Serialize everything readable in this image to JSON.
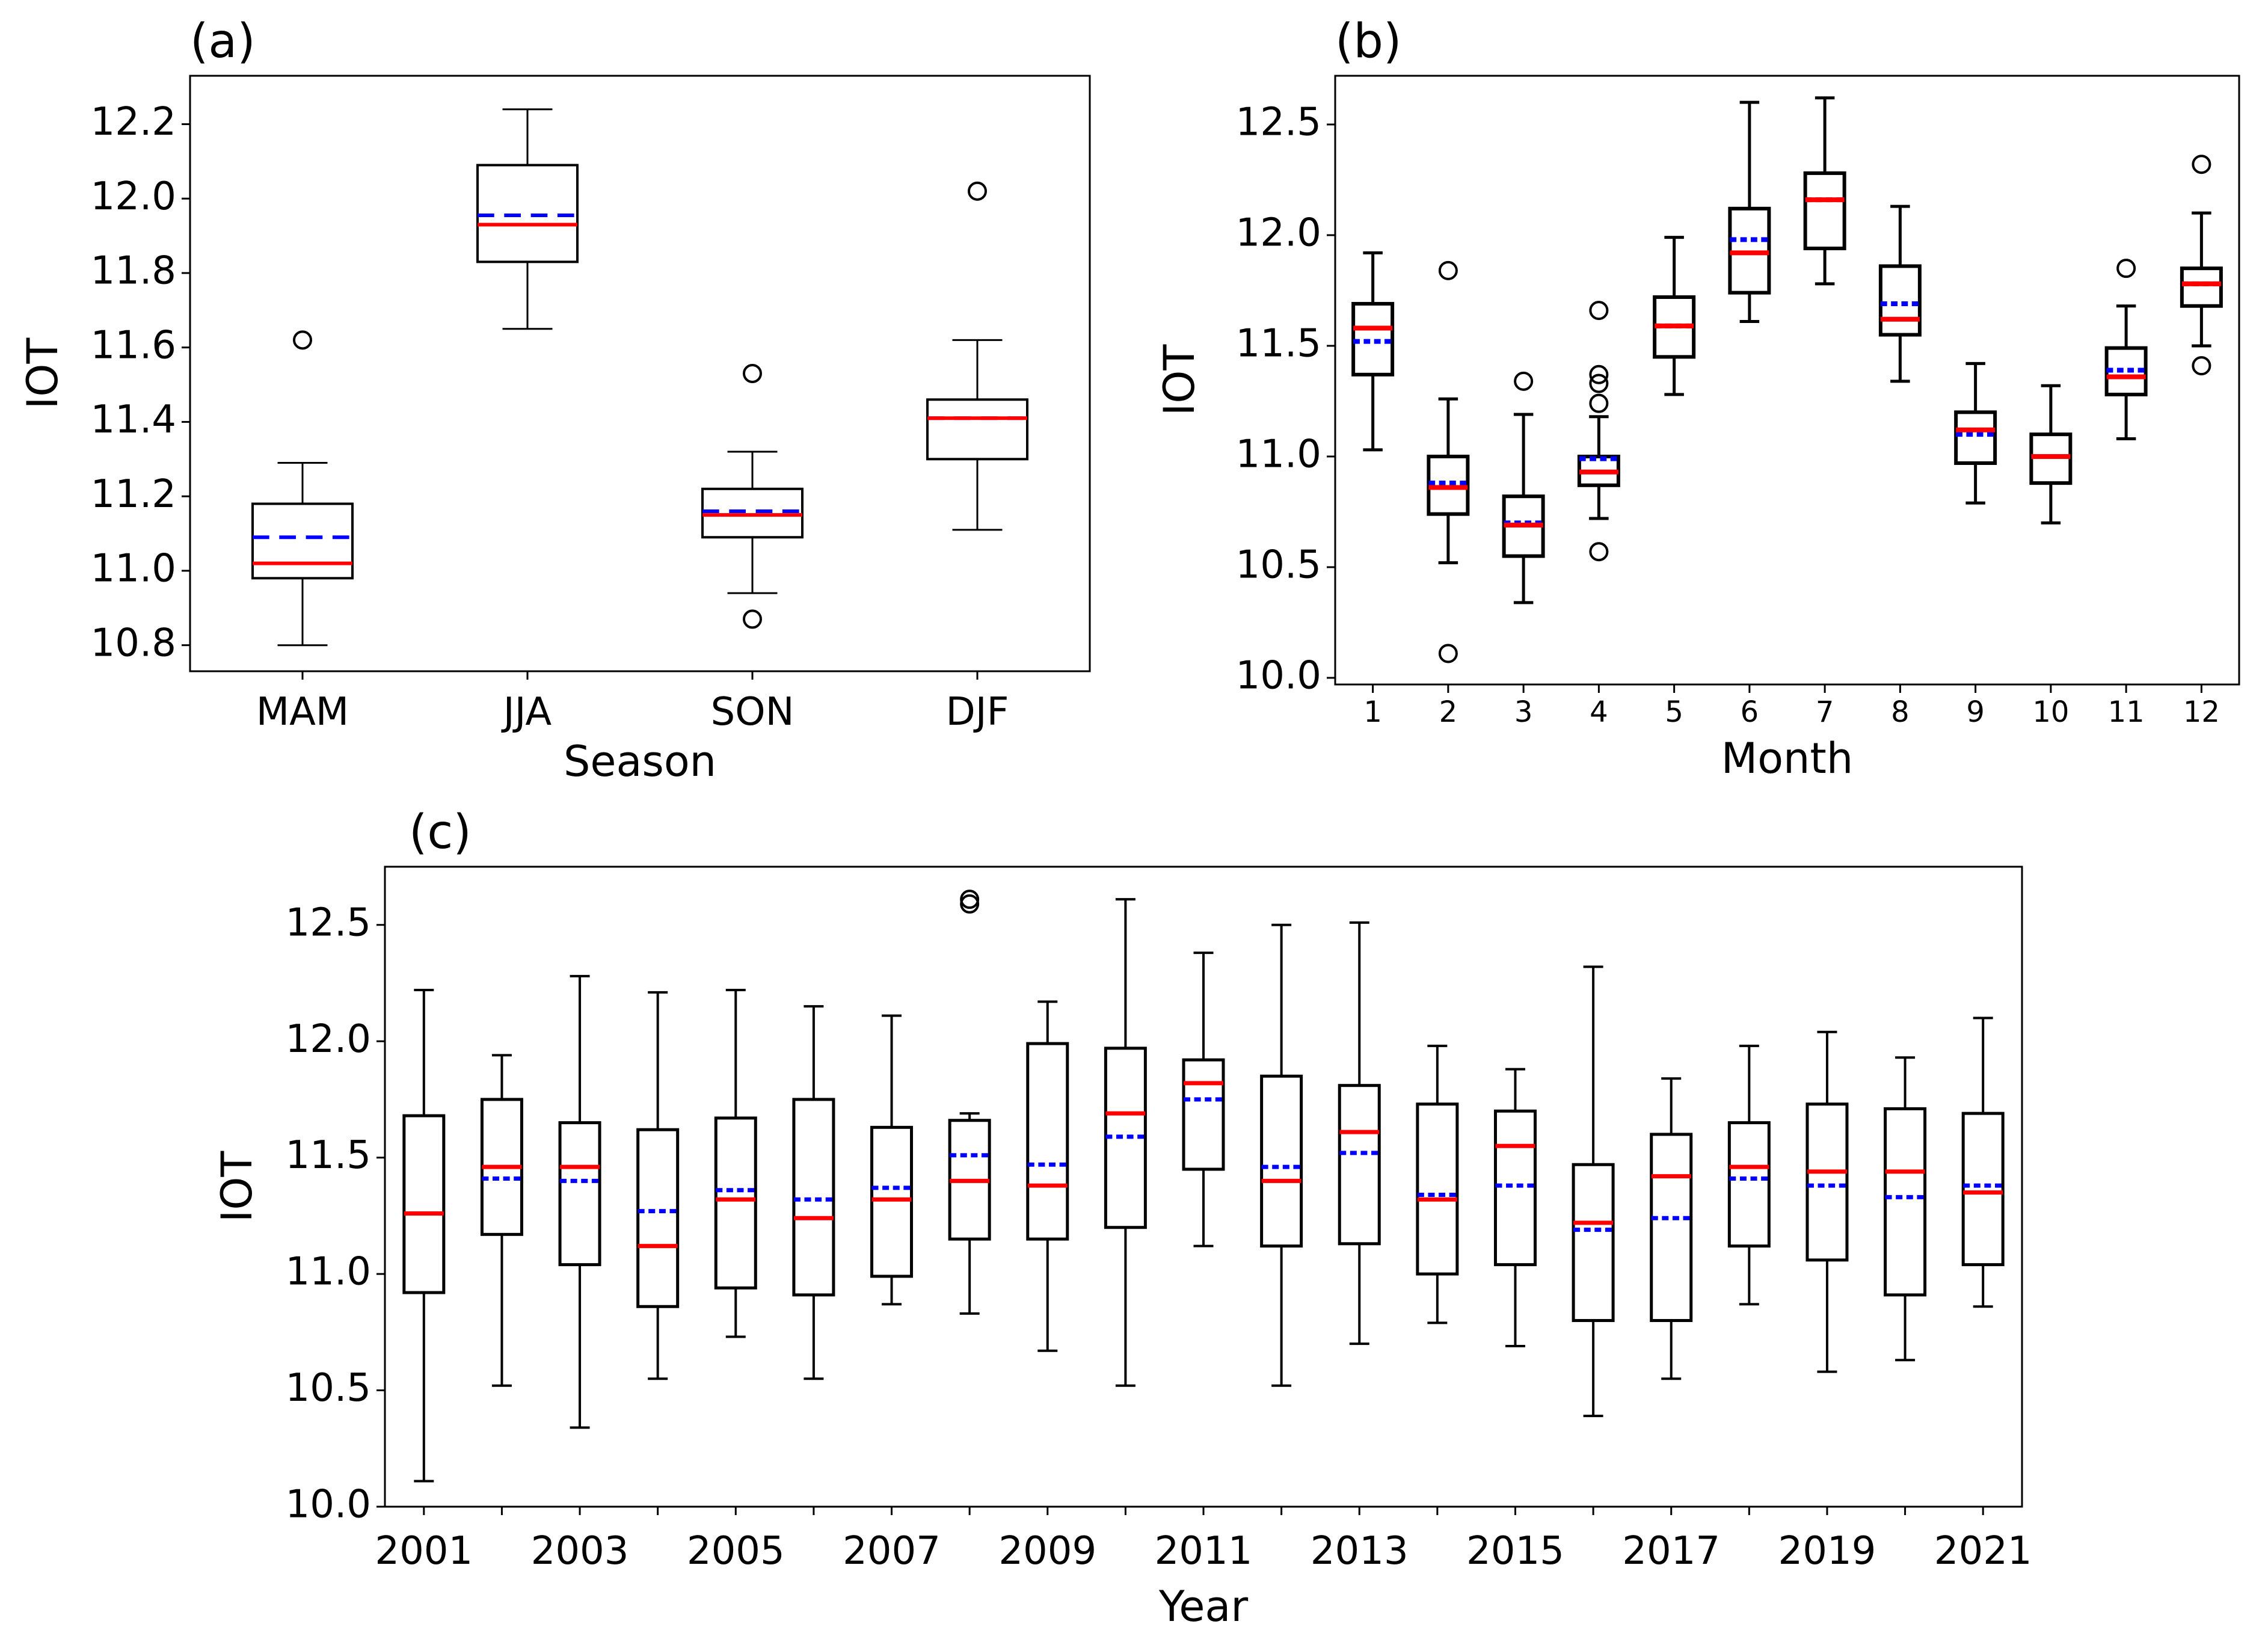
{
  "chart_data": [
    {
      "id": "a",
      "panel_label": "(a)",
      "type": "box",
      "xlabel": "Season",
      "ylabel": "IOT",
      "ylim": [
        10.73,
        12.33
      ],
      "yticks": [
        10.8,
        11.0,
        11.2,
        11.4,
        11.6,
        11.8,
        12.0,
        12.2
      ],
      "ytick_labels": [
        "10.8",
        "11.0",
        "11.2",
        "11.4",
        "11.6",
        "11.8",
        "12.0",
        "12.2"
      ],
      "categories": [
        "MAM",
        "JJA",
        "SON",
        "DJF"
      ],
      "xtick_labels": [
        "MAM",
        "JJA",
        "SON",
        "DJF"
      ],
      "median_color": "#ff0000",
      "mean_color": "#0000ff",
      "boxes": [
        {
          "whislo": 10.8,
          "q1": 10.98,
          "med": 11.02,
          "mean": 11.09,
          "q3": 11.18,
          "whishi": 11.29,
          "fliers": [
            11.62
          ]
        },
        {
          "whislo": 11.65,
          "q1": 11.83,
          "med": 11.93,
          "mean": 11.955,
          "q3": 12.09,
          "whishi": 12.24,
          "fliers": []
        },
        {
          "whislo": 10.94,
          "q1": 11.09,
          "med": 11.15,
          "mean": 11.16,
          "q3": 11.22,
          "whishi": 11.32,
          "fliers": [
            10.87,
            11.53
          ]
        },
        {
          "whislo": 11.11,
          "q1": 11.3,
          "med": 11.41,
          "mean": 11.41,
          "q3": 11.46,
          "whishi": 11.62,
          "fliers": [
            12.02
          ]
        }
      ]
    },
    {
      "id": "b",
      "panel_label": "(b)",
      "type": "box",
      "xlabel": "Month",
      "ylabel": "IOT",
      "ylim": [
        9.97,
        12.72
      ],
      "yticks": [
        10.0,
        10.5,
        11.0,
        11.5,
        12.0,
        12.5
      ],
      "ytick_labels": [
        "10.0",
        "10.5",
        "11.0",
        "11.5",
        "12.0",
        "12.5"
      ],
      "categories": [
        "1",
        "2",
        "3",
        "4",
        "5",
        "6",
        "7",
        "8",
        "9",
        "10",
        "11",
        "12"
      ],
      "xtick_labels": [
        "1",
        "2",
        "3",
        "4",
        "5",
        "6",
        "7",
        "8",
        "9",
        "10",
        "11",
        "12"
      ],
      "median_color": "#ff0000",
      "mean_color": "#0000ff",
      "boxes": [
        {
          "whislo": 11.03,
          "q1": 11.37,
          "med": 11.58,
          "mean": 11.52,
          "q3": 11.69,
          "whishi": 11.92,
          "fliers": []
        },
        {
          "whislo": 10.52,
          "q1": 10.74,
          "med": 10.86,
          "mean": 10.88,
          "q3": 11.0,
          "whishi": 11.26,
          "fliers": [
            10.11,
            11.84
          ]
        },
        {
          "whislo": 10.34,
          "q1": 10.55,
          "med": 10.69,
          "mean": 10.7,
          "q3": 10.82,
          "whishi": 11.19,
          "fliers": [
            11.34
          ]
        },
        {
          "whislo": 10.72,
          "q1": 10.87,
          "med": 10.93,
          "mean": 10.99,
          "q3": 11.0,
          "whishi": 11.18,
          "fliers": [
            10.57,
            11.24,
            11.33,
            11.37,
            11.66
          ]
        },
        {
          "whislo": 11.28,
          "q1": 11.45,
          "med": 11.59,
          "mean": 11.59,
          "q3": 11.72,
          "whishi": 11.99,
          "fliers": []
        },
        {
          "whislo": 11.61,
          "q1": 11.74,
          "med": 11.92,
          "mean": 11.98,
          "q3": 12.12,
          "whishi": 12.6,
          "fliers": []
        },
        {
          "whislo": 11.78,
          "q1": 11.94,
          "med": 12.16,
          "mean": 12.16,
          "q3": 12.28,
          "whishi": 12.62,
          "fliers": []
        },
        {
          "whislo": 11.34,
          "q1": 11.55,
          "med": 11.62,
          "mean": 11.69,
          "q3": 11.86,
          "whishi": 12.13,
          "fliers": []
        },
        {
          "whislo": 10.79,
          "q1": 10.97,
          "med": 11.12,
          "mean": 11.1,
          "q3": 11.2,
          "whishi": 11.42,
          "fliers": []
        },
        {
          "whislo": 10.7,
          "q1": 10.88,
          "med": 11.0,
          "mean": 11.0,
          "q3": 11.1,
          "whishi": 11.32,
          "fliers": []
        },
        {
          "whislo": 11.08,
          "q1": 11.28,
          "med": 11.36,
          "mean": 11.39,
          "q3": 11.49,
          "whishi": 11.68,
          "fliers": [
            11.85
          ]
        },
        {
          "whislo": 11.5,
          "q1": 11.68,
          "med": 11.78,
          "mean": 11.78,
          "q3": 11.85,
          "whishi": 12.1,
          "fliers": [
            11.41,
            12.32
          ]
        }
      ]
    },
    {
      "id": "c",
      "panel_label": "(c)",
      "type": "box",
      "xlabel": "Year",
      "ylabel": "IOT",
      "ylim": [
        10.0,
        12.75
      ],
      "yticks": [
        10.0,
        10.5,
        11.0,
        11.5,
        12.0,
        12.5
      ],
      "ytick_labels": [
        "10.0",
        "10.5",
        "11.0",
        "11.5",
        "12.0",
        "12.5"
      ],
      "categories": [
        "2001",
        "2002",
        "2003",
        "2004",
        "2005",
        "2006",
        "2007",
        "2008",
        "2009",
        "2010",
        "2011",
        "2012",
        "2013",
        "2014",
        "2015",
        "2016",
        "2017",
        "2018",
        "2019",
        "2020",
        "2021"
      ],
      "xtick_labels": [
        "2001",
        "",
        "2003",
        "",
        "2005",
        "",
        "2007",
        "",
        "2009",
        "",
        "2011",
        "",
        "2013",
        "",
        "2015",
        "",
        "2017",
        "",
        "2019",
        "",
        "2021"
      ],
      "median_color": "#ff0000",
      "mean_color": "#0000ff",
      "boxes": [
        {
          "whislo": 10.11,
          "q1": 10.92,
          "med": 11.26,
          "mean": 11.26,
          "q3": 11.68,
          "whishi": 12.22,
          "fliers": []
        },
        {
          "whislo": 10.52,
          "q1": 11.17,
          "med": 11.46,
          "mean": 11.41,
          "q3": 11.75,
          "whishi": 11.94,
          "fliers": []
        },
        {
          "whislo": 10.34,
          "q1": 11.04,
          "med": 11.46,
          "mean": 11.4,
          "q3": 11.65,
          "whishi": 12.28,
          "fliers": []
        },
        {
          "whislo": 10.55,
          "q1": 10.86,
          "med": 11.12,
          "mean": 11.27,
          "q3": 11.62,
          "whishi": 12.21,
          "fliers": []
        },
        {
          "whislo": 10.73,
          "q1": 10.94,
          "med": 11.32,
          "mean": 11.36,
          "q3": 11.67,
          "whishi": 12.22,
          "fliers": []
        },
        {
          "whislo": 10.55,
          "q1": 10.91,
          "med": 11.24,
          "mean": 11.32,
          "q3": 11.75,
          "whishi": 12.15,
          "fliers": []
        },
        {
          "whislo": 10.87,
          "q1": 10.99,
          "med": 11.32,
          "mean": 11.37,
          "q3": 11.63,
          "whishi": 12.11,
          "fliers": []
        },
        {
          "whislo": 10.83,
          "q1": 11.15,
          "med": 11.4,
          "mean": 11.51,
          "q3": 11.66,
          "whishi": 11.69,
          "fliers": [
            12.59,
            12.61
          ]
        },
        {
          "whislo": 10.67,
          "q1": 11.15,
          "med": 11.38,
          "mean": 11.47,
          "q3": 11.99,
          "whishi": 12.17,
          "fliers": []
        },
        {
          "whislo": 10.52,
          "q1": 11.2,
          "med": 11.69,
          "mean": 11.59,
          "q3": 11.97,
          "whishi": 12.61,
          "fliers": []
        },
        {
          "whislo": 11.12,
          "q1": 11.45,
          "med": 11.82,
          "mean": 11.75,
          "q3": 11.92,
          "whishi": 12.38,
          "fliers": []
        },
        {
          "whislo": 10.52,
          "q1": 11.12,
          "med": 11.4,
          "mean": 11.46,
          "q3": 11.85,
          "whishi": 12.5,
          "fliers": []
        },
        {
          "whislo": 10.7,
          "q1": 11.13,
          "med": 11.61,
          "mean": 11.52,
          "q3": 11.81,
          "whishi": 12.51,
          "fliers": []
        },
        {
          "whislo": 10.79,
          "q1": 11.0,
          "med": 11.32,
          "mean": 11.34,
          "q3": 11.73,
          "whishi": 11.98,
          "fliers": []
        },
        {
          "whislo": 10.69,
          "q1": 11.04,
          "med": 11.55,
          "mean": 11.38,
          "q3": 11.7,
          "whishi": 11.88,
          "fliers": []
        },
        {
          "whislo": 10.39,
          "q1": 10.8,
          "med": 11.22,
          "mean": 11.19,
          "q3": 11.47,
          "whishi": 12.32,
          "fliers": []
        },
        {
          "whislo": 10.55,
          "q1": 10.8,
          "med": 11.42,
          "mean": 11.24,
          "q3": 11.6,
          "whishi": 11.84,
          "fliers": []
        },
        {
          "whislo": 10.87,
          "q1": 11.12,
          "med": 11.46,
          "mean": 11.41,
          "q3": 11.65,
          "whishi": 11.98,
          "fliers": []
        },
        {
          "whislo": 10.58,
          "q1": 11.06,
          "med": 11.44,
          "mean": 11.38,
          "q3": 11.73,
          "whishi": 12.04,
          "fliers": []
        },
        {
          "whislo": 10.63,
          "q1": 10.91,
          "med": 11.44,
          "mean": 11.33,
          "q3": 11.71,
          "whishi": 11.93,
          "fliers": []
        },
        {
          "whislo": 10.86,
          "q1": 11.04,
          "med": 11.35,
          "mean": 11.38,
          "q3": 11.69,
          "whishi": 12.1,
          "fliers": []
        }
      ]
    }
  ]
}
